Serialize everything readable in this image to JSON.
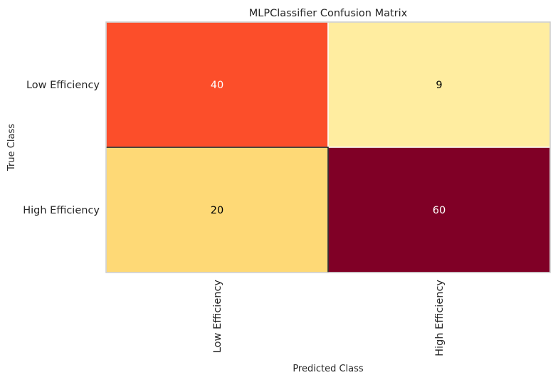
{
  "chart_data": {
    "type": "heatmap",
    "title": "MLPClassifier Confusion Matrix",
    "xlabel": "Predicted Class",
    "ylabel": "True Class",
    "x_categories": [
      "Low Efficiency",
      "High Efficiency"
    ],
    "y_categories": [
      "Low Efficiency",
      "High Efficiency"
    ],
    "matrix": [
      [
        40,
        9
      ],
      [
        20,
        60
      ]
    ],
    "colormap": "YlOrRd",
    "grid": false,
    "cell_colors": [
      [
        "#fc4e2a",
        "#ffeda0"
      ],
      [
        "#fed976",
        "#800026"
      ]
    ],
    "text_colors": [
      [
        "#ffffff",
        "#000000"
      ],
      [
        "#000000",
        "#ffffff"
      ]
    ]
  }
}
